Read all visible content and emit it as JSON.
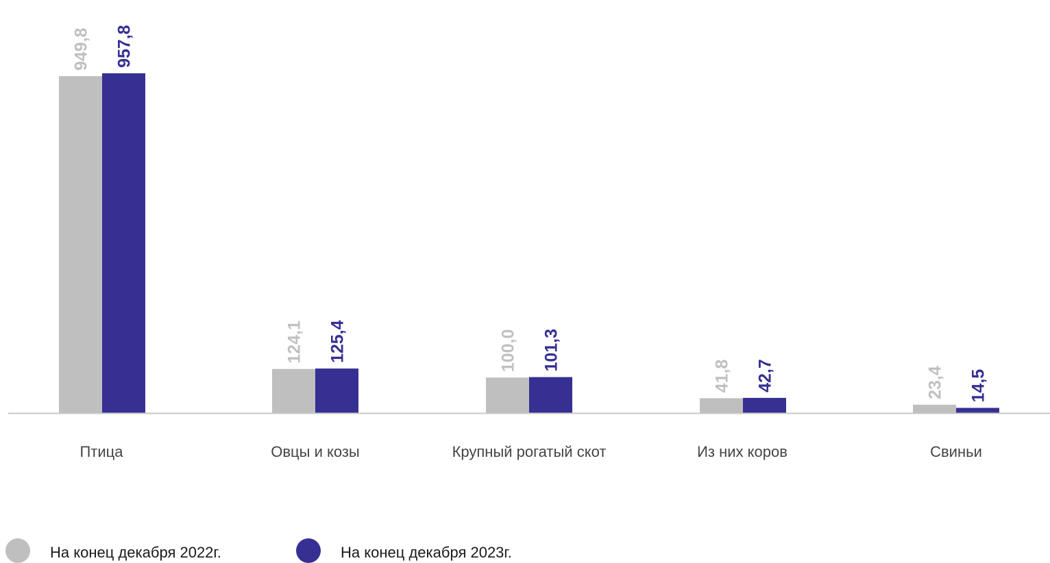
{
  "chart_data": {
    "type": "bar",
    "categories": [
      "Птица",
      "Овцы и козы",
      "Крупный рогатый скот",
      "Из них коров",
      "Свиньи"
    ],
    "series": [
      {
        "name": "На конец декабря 2022г.",
        "values": [
          949.8,
          124.1,
          100.0,
          41.8,
          23.4
        ],
        "labels": [
          "949,8",
          "124,1",
          "100,0",
          "41,8",
          "23,4"
        ],
        "color": "#bfbfbf",
        "label_color": "#c0c0c0"
      },
      {
        "name": "На конец декабря 2023г.",
        "values": [
          957.8,
          125.4,
          101.3,
          42.7,
          14.5
        ],
        "labels": [
          "957,8",
          "125,4",
          "101,3",
          "42,7",
          "14,5"
        ],
        "color": "#363092",
        "label_color": "#363092"
      }
    ],
    "ylim": [
      0,
      1000
    ],
    "grid": false,
    "legend_position": "bottom-left",
    "data_labels": "rotated-vertical"
  },
  "colors": {
    "axis": "#c8c8c8",
    "category_text": "#444444"
  }
}
